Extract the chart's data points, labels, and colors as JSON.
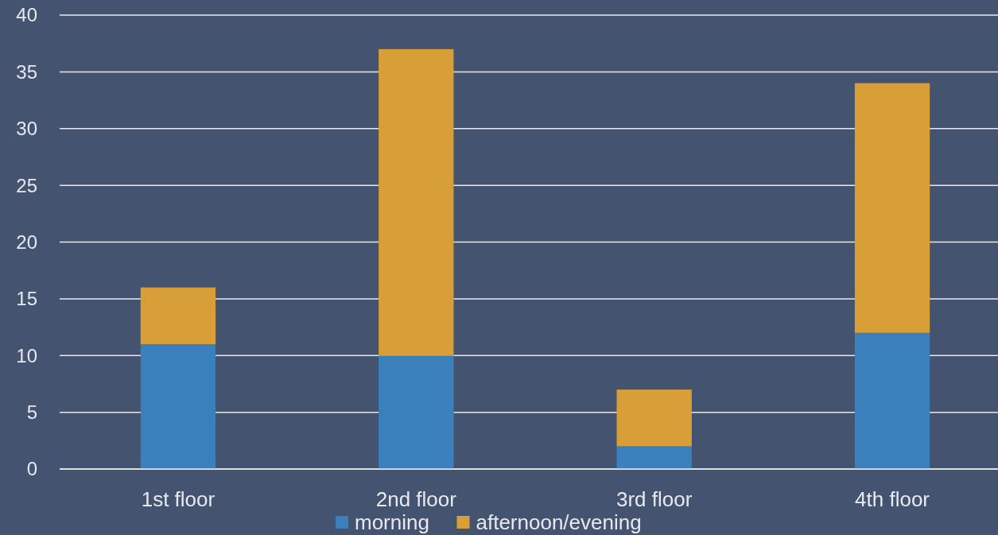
{
  "chart_data": {
    "type": "bar",
    "stacked": true,
    "categories": [
      "1st floor",
      "2nd floor",
      "3rd floor",
      "4th floor"
    ],
    "series": [
      {
        "name": "morning",
        "color": "#3a80bd",
        "values": [
          11,
          10,
          2,
          12
        ]
      },
      {
        "name": "afternoon/evening",
        "color": "#d89f38",
        "values": [
          5,
          27,
          5,
          22
        ]
      }
    ],
    "ylim": [
      0,
      40
    ],
    "yticks": [
      0,
      5,
      10,
      15,
      20,
      25,
      30,
      35,
      40
    ],
    "grid": "y",
    "legend": "bottom"
  }
}
